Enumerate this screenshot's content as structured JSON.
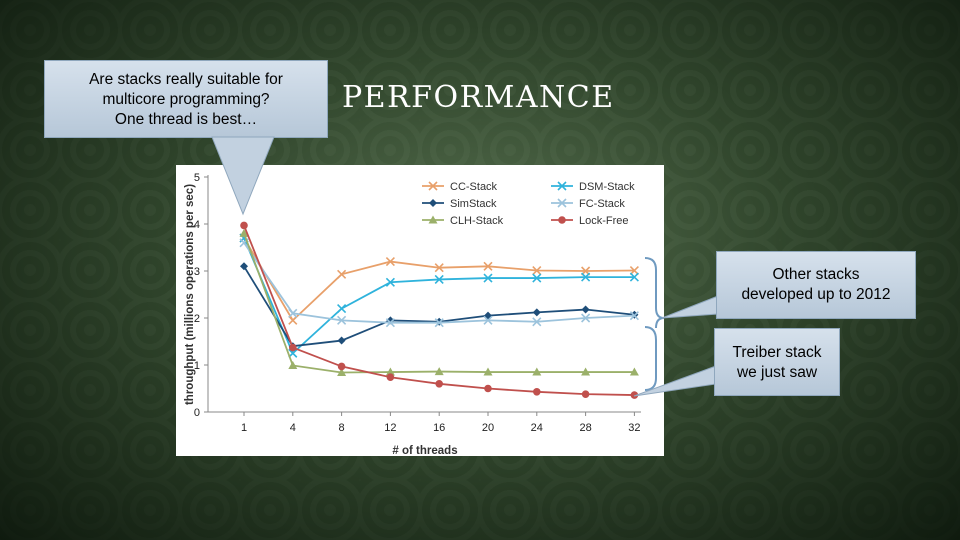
{
  "slide": {
    "title": "PERFORMANCE"
  },
  "callouts": {
    "top": [
      "Are stacks really suitable for",
      "multicore programming?",
      "One thread is best…"
    ],
    "other_stacks": [
      "Other stacks",
      "developed up to 2012"
    ],
    "treiber": [
      "Treiber stack",
      "we just saw"
    ]
  },
  "colors": {
    "callout_fill": "#c6d4e2",
    "bracket": "#6f9ac0"
  },
  "chart_data": {
    "type": "line",
    "xlabel": "# of threads",
    "ylabel": "throughput (millions operations per sec)",
    "x": [
      1,
      4,
      8,
      12,
      16,
      20,
      24,
      28,
      32
    ],
    "ylim": [
      0,
      5
    ],
    "yticks": [
      0,
      1,
      2,
      3,
      4,
      5
    ],
    "grid": false,
    "legend_position": "top-right",
    "series": [
      {
        "name": "CC-Stack",
        "color": "#e8a06a",
        "marker": "x",
        "values": [
          3.7,
          1.95,
          2.93,
          3.2,
          3.07,
          3.1,
          3.01,
          3.0,
          3.01
        ]
      },
      {
        "name": "DSM-Stack",
        "color": "#2fb3dc",
        "marker": "x",
        "values": [
          3.7,
          1.25,
          2.2,
          2.76,
          2.82,
          2.85,
          2.85,
          2.87,
          2.87
        ]
      },
      {
        "name": "SimStack",
        "color": "#1f4e79",
        "marker": "diamond",
        "values": [
          3.1,
          1.4,
          1.52,
          1.95,
          1.92,
          2.05,
          2.12,
          2.18,
          2.07
        ]
      },
      {
        "name": "FC-Stack",
        "color": "#9cc3dc",
        "marker": "x",
        "values": [
          3.6,
          2.1,
          1.95,
          1.9,
          1.9,
          1.95,
          1.92,
          2.0,
          2.05
        ]
      },
      {
        "name": "CLH-Stack",
        "color": "#9bb06a",
        "marker": "triangle",
        "values": [
          3.8,
          0.99,
          0.84,
          0.85,
          0.86,
          0.85,
          0.85,
          0.85,
          0.85
        ]
      },
      {
        "name": "Lock-Free",
        "color": "#c0504d",
        "marker": "circle",
        "values": [
          3.97,
          1.37,
          0.97,
          0.74,
          0.6,
          0.5,
          0.43,
          0.38,
          0.36
        ]
      }
    ]
  }
}
